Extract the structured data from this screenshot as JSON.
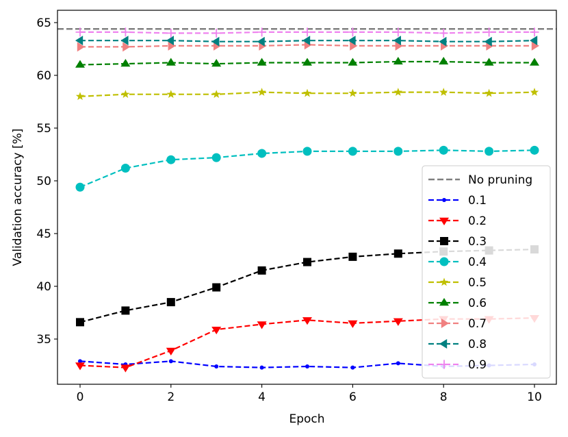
{
  "chart_data": {
    "type": "line",
    "title": "",
    "xlabel": "Epoch",
    "ylabel": "Validation accuracy [%]",
    "xlim": [
      -0.5,
      10.5
    ],
    "ylim": [
      30.5,
      66
    ],
    "xticks": [
      0,
      2,
      4,
      6,
      8,
      10
    ],
    "yticks": [
      35,
      40,
      45,
      50,
      55,
      60,
      65
    ],
    "grid": false,
    "legend_position": "lower-right",
    "baseline": {
      "name": "No pruning",
      "value": 64.4,
      "color": "#808080"
    },
    "x": [
      0,
      1,
      2,
      3,
      4,
      5,
      6,
      7,
      8,
      9,
      10
    ],
    "series": [
      {
        "name": "0.1",
        "color": "#0000ff",
        "marker": "point",
        "values": [
          32.9,
          32.6,
          32.9,
          32.4,
          32.3,
          32.4,
          32.3,
          32.7,
          32.4,
          32.5,
          32.6
        ]
      },
      {
        "name": "0.2",
        "color": "#ff0000",
        "marker": "triangle-down",
        "values": [
          32.5,
          32.3,
          33.9,
          35.9,
          36.4,
          36.8,
          36.5,
          36.7,
          36.9,
          36.9,
          37.0
        ]
      },
      {
        "name": "0.3",
        "color": "#000000",
        "marker": "square",
        "values": [
          36.6,
          37.7,
          38.5,
          39.9,
          41.5,
          42.3,
          42.8,
          43.1,
          43.3,
          43.4,
          43.5
        ]
      },
      {
        "name": "0.4",
        "color": "#00bfbf",
        "marker": "circle",
        "values": [
          49.4,
          51.2,
          52.0,
          52.2,
          52.6,
          52.8,
          52.8,
          52.8,
          52.9,
          52.8,
          52.9
        ]
      },
      {
        "name": "0.5",
        "color": "#bfbf00",
        "marker": "star",
        "values": [
          58.0,
          58.2,
          58.2,
          58.2,
          58.4,
          58.3,
          58.3,
          58.4,
          58.4,
          58.3,
          58.4
        ]
      },
      {
        "name": "0.6",
        "color": "#008000",
        "marker": "triangle-up",
        "values": [
          61.0,
          61.1,
          61.2,
          61.1,
          61.2,
          61.2,
          61.2,
          61.3,
          61.3,
          61.2,
          61.2
        ]
      },
      {
        "name": "0.7",
        "color": "#f08080",
        "marker": "triangle-right",
        "values": [
          62.7,
          62.7,
          62.8,
          62.8,
          62.8,
          62.9,
          62.8,
          62.8,
          62.8,
          62.8,
          62.8
        ]
      },
      {
        "name": "0.8",
        "color": "#008080",
        "marker": "triangle-left",
        "values": [
          63.3,
          63.3,
          63.3,
          63.2,
          63.2,
          63.3,
          63.3,
          63.3,
          63.2,
          63.2,
          63.3
        ]
      },
      {
        "name": "0.9",
        "color": "#ee82ee",
        "marker": "plus",
        "values": [
          64.1,
          64.1,
          64.0,
          64.0,
          64.1,
          64.1,
          64.1,
          64.1,
          64.0,
          64.1,
          64.1
        ]
      }
    ]
  }
}
